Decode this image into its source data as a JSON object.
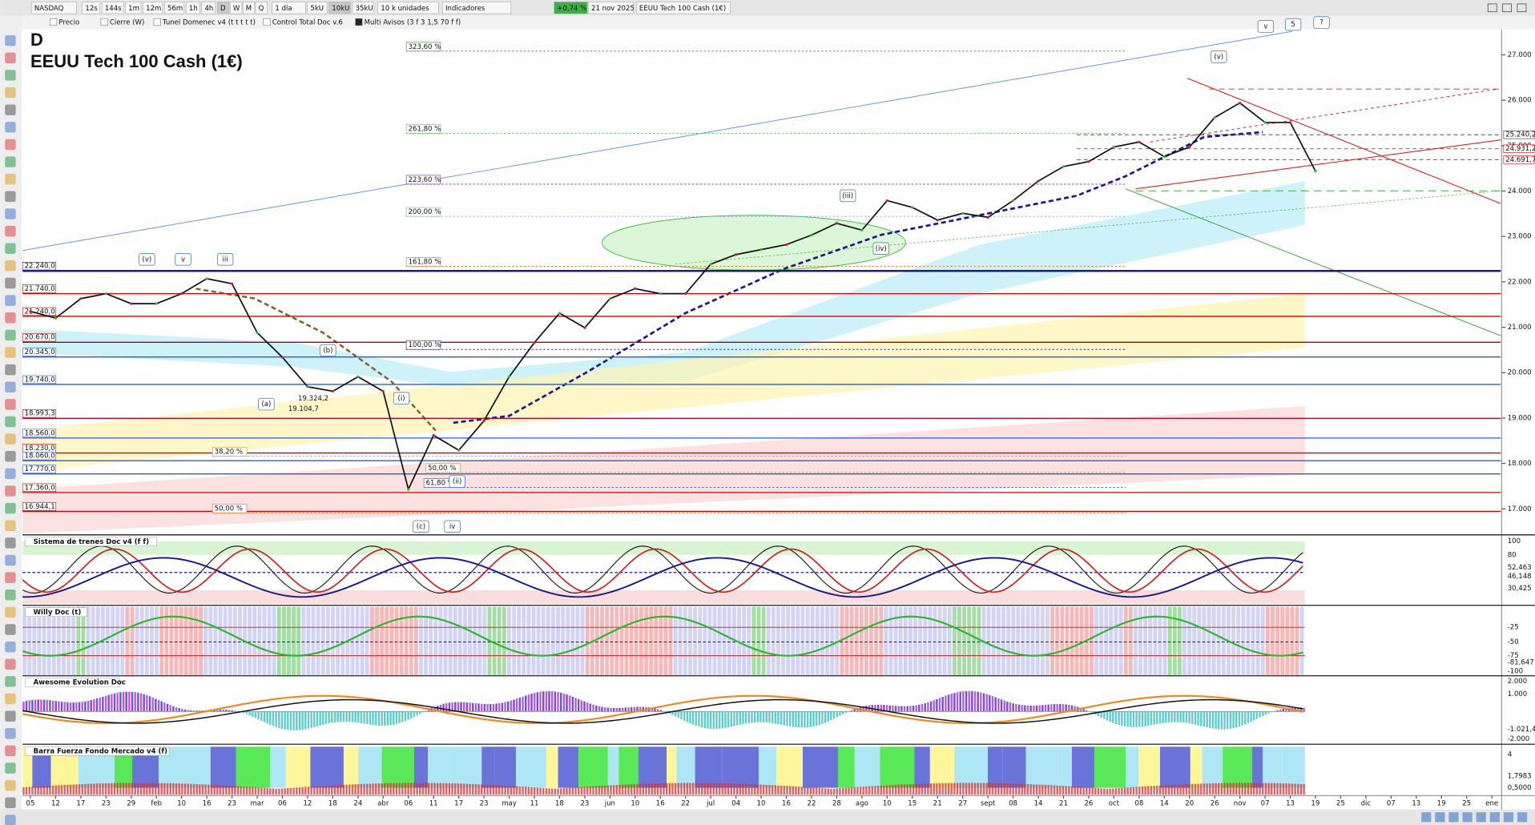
{
  "toolbar": {
    "symbol": "NASDAQ",
    "intervals": [
      "12s",
      "144s",
      "1m",
      "12m",
      "56m",
      "1h",
      "4h",
      "D",
      "W",
      "M",
      "Q"
    ],
    "period": "1 día",
    "units": [
      "5kU",
      "10kU",
      "35kU"
    ],
    "quantity": "10 k unidades",
    "indicators": "Indicadores",
    "change": "+0,74 %",
    "date": "21 nov 2025",
    "instrument": "EEUU Tech 100 Cash (1€)"
  },
  "legend_bar": [
    "Precio",
    "Cierre (W)",
    "Tunel Domenec v4 (t t t t t)",
    "Control Total Doc v.6",
    "Multi Avisos (3 f 3 1,5 70 f f)"
  ],
  "chart_data": {
    "type": "line",
    "title": "D",
    "subtitle": "EEUU Tech 100 Cash (1€)",
    "color": "#111111",
    "categories": [
      "05",
      "12",
      "17",
      "23",
      "29",
      "feb",
      "10",
      "16",
      "23",
      "mar",
      "06",
      "12",
      "18",
      "24",
      "abr",
      "06",
      "11",
      "17",
      "23",
      "may",
      "11",
      "18",
      "23",
      "jun",
      "10",
      "16",
      "22",
      "jul",
      "04",
      "10",
      "16",
      "22",
      "28",
      "ago",
      "10",
      "15",
      "21",
      "27",
      "sept",
      "08",
      "14",
      "21",
      "26",
      "oct",
      "08",
      "14",
      "20",
      "26",
      "nov",
      "07",
      "13",
      "19",
      "25",
      "dic",
      "07",
      "13",
      "19",
      "25",
      "ene"
    ],
    "values": [
      21350,
      21200,
      21630,
      21740,
      21520,
      21520,
      21740,
      22070,
      21960,
      20880,
      20340,
      19690,
      19590,
      19910,
      19590,
      17430,
      18620,
      18290,
      18940,
      19910,
      20660,
      21310,
      20990,
      21630,
      21850,
      21740,
      21740,
      22390,
      22600,
      22710,
      22820,
      23030,
      23290,
      23140,
      23790,
      23640,
      23360,
      23510,
      23420,
      23790,
      24220,
      24540,
      24650,
      24970,
      25080,
      24760,
      24970,
      25620,
      25940,
      25510,
      25510,
      24440,
      null,
      null,
      null,
      null,
      null,
      null,
      null
    ],
    "ylim": [
      16460,
      27540
    ],
    "yticks": [
      {
        "value": 17000,
        "label": "17.000"
      },
      {
        "value": 18000,
        "label": "18.000"
      },
      {
        "value": 19000,
        "label": "19.000"
      },
      {
        "value": 20000,
        "label": "20.000"
      },
      {
        "value": 21000,
        "label": "21.000"
      },
      {
        "value": 22000,
        "label": "22.000"
      },
      {
        "value": 23000,
        "label": "23.000"
      },
      {
        "value": 24000,
        "label": "24.000"
      },
      {
        "value": 25000,
        "label": "25.000"
      },
      {
        "value": 26000,
        "label": "26.000"
      },
      {
        "value": 27000,
        "label": "27.000"
      }
    ],
    "levels": [
      {
        "value": 22240,
        "label": "22.240,0",
        "color": "#1a1a8c"
      },
      {
        "value": 21740,
        "label": "21.740,0",
        "color": "#d40000"
      },
      {
        "value": 21240,
        "label": "21.240,0",
        "color": "#d40000"
      },
      {
        "value": 20670,
        "label": "20.670,0",
        "color": "#b00000"
      },
      {
        "value": 20345,
        "label": "20.345,0",
        "color": "#2a5bd7"
      },
      {
        "value": 19740,
        "label": "19.740,0",
        "color": "#2a5bd7"
      },
      {
        "value": 18993.3,
        "label": "18.993,3",
        "color": "#c00030"
      },
      {
        "value": 18560,
        "label": "18.560,0",
        "color": "#2a5bd7"
      },
      {
        "value": 18230,
        "label": "18.230,0",
        "color": "#d40000"
      },
      {
        "value": 18060,
        "label": "18.060,0",
        "color": "#2a5bd7"
      },
      {
        "value": 17770,
        "label": "17.770,0",
        "color": "#2a5bd7"
      },
      {
        "value": 17360,
        "label": "17.360,0",
        "color": "#d40000"
      },
      {
        "value": 16944.1,
        "label": "16.944,1",
        "color": "#d40000"
      }
    ],
    "right_levels": [
      {
        "value": 25240.2,
        "label": "25.240,2",
        "color": "#333333"
      },
      {
        "value": 24931.2,
        "label": "24.931,2",
        "color": "#d40000"
      },
      {
        "value": 24691.7,
        "label": "24.691,7",
        "color": "#d40000"
      }
    ],
    "fib_levels": [
      {
        "price": 27190,
        "text": "323,60 %",
        "color": "#2e8b2e"
      },
      {
        "price": 25380,
        "text": "261,80 %",
        "color": "#5cbf5c"
      },
      {
        "price": 24260,
        "text": "223,60 %",
        "color": "#7a1fa2"
      },
      {
        "price": 23550,
        "text": "200,00 %",
        "color": "#8fa6e8"
      },
      {
        "price": 22450,
        "text": "161,80 %",
        "color": "#e06c1a"
      },
      {
        "price": 20620,
        "text": "100,00 %",
        "color": "#1a1a8c"
      },
      {
        "price": 17580,
        "text": "61,80 %",
        "color": "#2a5bd7"
      },
      {
        "price": 17910,
        "text": "50,00 %",
        "color": "#c09030"
      },
      {
        "price": 18270,
        "text": "38,20 %",
        "color": "#c0a030"
      },
      {
        "price": 17020,
        "text": "50,00 %",
        "color": "#e06c1a"
      }
    ],
    "annotations": [
      "(v)",
      "v",
      "iii",
      "(b)",
      "(a)",
      "(i)",
      "(ii)",
      "(c)",
      "iv",
      "(iii)",
      "(iv)",
      "(v)",
      "v",
      "5",
      "?",
      "19.104,7",
      "19.324,2"
    ]
  },
  "panels": [
    {
      "title": "Sistema de trenes Doc v4 (f f)",
      "scale": [
        "100",
        "80",
        "52,463",
        "46,148",
        "30,425"
      ]
    },
    {
      "title": "Willy Doc (t)",
      "scale": [
        "-25",
        "-50",
        "-75",
        "-81,647",
        "-100"
      ]
    },
    {
      "title": "Awesome Evolution Doc",
      "scale": [
        "2.000",
        "1.000",
        "-1.021,4",
        "-2.000"
      ]
    },
    {
      "title": "Barra Fuerza Fondo Mercado v4 (f)",
      "scale": [
        "4",
        "1,7983",
        "0,5000"
      ]
    }
  ]
}
